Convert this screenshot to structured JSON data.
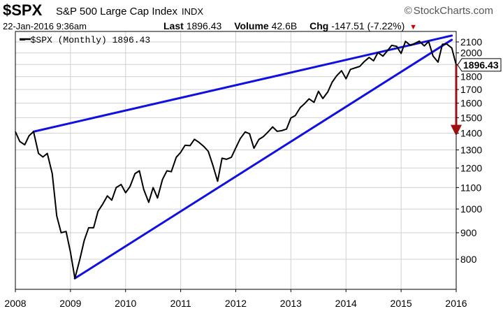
{
  "header": {
    "symbol": "$SPX",
    "name": "S&P 500 Large Cap Index",
    "exchange": "INDX",
    "brand": "StockCharts.com",
    "brand_symbol": "©",
    "datetime": "22-Jan-2016 9:36am",
    "last_label": "Last",
    "last_value": "1896.43",
    "volume_label": "Volume",
    "volume_value": "42.6B",
    "chg_label": "Chg",
    "chg_value": "-147.51 (-7.22%)",
    "chg_arrow": "▼"
  },
  "colors": {
    "price_line": "#000000",
    "trendline": "#1010e0",
    "projection_arrow": "#a01010",
    "grid": "#d0d0d0"
  },
  "chart_data": {
    "type": "line",
    "scale": "log",
    "legend": "— $SPX (Monthly) 1896.43",
    "legend_position": "top-left",
    "last_price_label": "1896.43",
    "grid": true,
    "ylim": [
      700,
      2200
    ],
    "xlim": [
      2008,
      2016
    ],
    "y_ticks": [
      800,
      900,
      1000,
      1100,
      1200,
      1300,
      1400,
      1500,
      1600,
      1700,
      1800,
      1900,
      2000,
      2100
    ],
    "x_ticks": [
      2008,
      2009,
      2010,
      2011,
      2012,
      2013,
      2014,
      2015,
      2016
    ],
    "series": [
      {
        "name": "$SPX (Monthly)",
        "points": [
          [
            2008.0,
            1410
          ],
          [
            2008.08,
            1350
          ],
          [
            2008.17,
            1330
          ],
          [
            2008.25,
            1385
          ],
          [
            2008.33,
            1410
          ],
          [
            2008.42,
            1280
          ],
          [
            2008.5,
            1260
          ],
          [
            2008.58,
            1280
          ],
          [
            2008.67,
            1170
          ],
          [
            2008.75,
            970
          ],
          [
            2008.83,
            900
          ],
          [
            2008.92,
            905
          ],
          [
            2009.0,
            825
          ],
          [
            2009.08,
            735
          ],
          [
            2009.17,
            800
          ],
          [
            2009.25,
            870
          ],
          [
            2009.33,
            920
          ],
          [
            2009.42,
            920
          ],
          [
            2009.5,
            990
          ],
          [
            2009.58,
            1020
          ],
          [
            2009.67,
            1060
          ],
          [
            2009.75,
            1040
          ],
          [
            2009.83,
            1100
          ],
          [
            2009.92,
            1115
          ],
          [
            2010.0,
            1075
          ],
          [
            2010.08,
            1105
          ],
          [
            2010.17,
            1170
          ],
          [
            2010.25,
            1185
          ],
          [
            2010.33,
            1090
          ],
          [
            2010.42,
            1030
          ],
          [
            2010.5,
            1100
          ],
          [
            2010.58,
            1050
          ],
          [
            2010.67,
            1140
          ],
          [
            2010.75,
            1185
          ],
          [
            2010.83,
            1180
          ],
          [
            2010.92,
            1258
          ],
          [
            2011.0,
            1286
          ],
          [
            2011.08,
            1327
          ],
          [
            2011.17,
            1325
          ],
          [
            2011.25,
            1363
          ],
          [
            2011.33,
            1345
          ],
          [
            2011.42,
            1320
          ],
          [
            2011.5,
            1292
          ],
          [
            2011.58,
            1218
          ],
          [
            2011.67,
            1131
          ],
          [
            2011.75,
            1253
          ],
          [
            2011.83,
            1247
          ],
          [
            2011.92,
            1258
          ],
          [
            2012.0,
            1312
          ],
          [
            2012.08,
            1366
          ],
          [
            2012.17,
            1408
          ],
          [
            2012.25,
            1397
          ],
          [
            2012.33,
            1310
          ],
          [
            2012.42,
            1362
          ],
          [
            2012.5,
            1379
          ],
          [
            2012.58,
            1406
          ],
          [
            2012.67,
            1440
          ],
          [
            2012.75,
            1412
          ],
          [
            2012.83,
            1416
          ],
          [
            2012.92,
            1426
          ],
          [
            2013.0,
            1498
          ],
          [
            2013.08,
            1514
          ],
          [
            2013.17,
            1569
          ],
          [
            2013.25,
            1597
          ],
          [
            2013.33,
            1631
          ],
          [
            2013.42,
            1606
          ],
          [
            2013.5,
            1686
          ],
          [
            2013.58,
            1633
          ],
          [
            2013.67,
            1682
          ],
          [
            2013.75,
            1757
          ],
          [
            2013.83,
            1806
          ],
          [
            2013.92,
            1848
          ],
          [
            2014.0,
            1783
          ],
          [
            2014.08,
            1859
          ],
          [
            2014.17,
            1872
          ],
          [
            2014.25,
            1884
          ],
          [
            2014.33,
            1924
          ],
          [
            2014.42,
            1960
          ],
          [
            2014.5,
            1931
          ],
          [
            2014.58,
            2003
          ],
          [
            2014.67,
            1972
          ],
          [
            2014.75,
            2018
          ],
          [
            2014.83,
            2068
          ],
          [
            2014.92,
            2059
          ],
          [
            2015.0,
            1995
          ],
          [
            2015.08,
            2105
          ],
          [
            2015.17,
            2068
          ],
          [
            2015.25,
            2086
          ],
          [
            2015.33,
            2107
          ],
          [
            2015.42,
            2063
          ],
          [
            2015.5,
            2104
          ],
          [
            2015.58,
            1972
          ],
          [
            2015.67,
            1920
          ],
          [
            2015.75,
            2079
          ],
          [
            2015.83,
            2080
          ],
          [
            2015.92,
            2044
          ],
          [
            2016.0,
            1896
          ]
        ]
      }
    ],
    "trendlines": [
      {
        "name": "upper",
        "from": [
          2008.33,
          1410
        ],
        "to": [
          2015.92,
          2160
        ]
      },
      {
        "name": "lower",
        "from": [
          2009.08,
          735
        ],
        "to": [
          2015.92,
          2120
        ]
      }
    ],
    "projection": {
      "from": [
        2016.0,
        1896
      ],
      "to": [
        2016.0,
        1400
      ]
    }
  }
}
